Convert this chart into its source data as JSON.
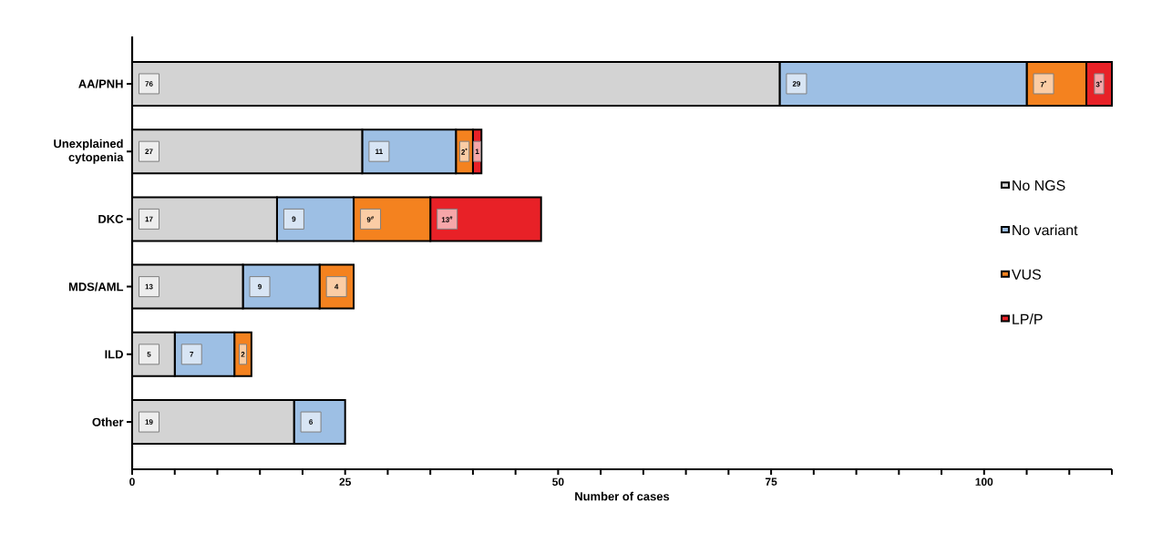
{
  "chart_data": {
    "type": "bar",
    "orientation": "horizontal",
    "stacked": true,
    "xlabel": "Number of cases",
    "categories": [
      "AA/PNH",
      "Unexplained cytopenia",
      "DKC",
      "MDS/AML",
      "ILD",
      "Other"
    ],
    "series": [
      {
        "name": "No NGS",
        "color": "#d3d3d3",
        "values": [
          76,
          27,
          17,
          13,
          5,
          19
        ],
        "value_labels": [
          "76",
          "27",
          "17",
          "13",
          "5",
          "19"
        ]
      },
      {
        "name": "No variant",
        "color": "#9dbfe4",
        "values": [
          29,
          11,
          9,
          9,
          7,
          6
        ],
        "value_labels": [
          "29",
          "11",
          "9",
          "9",
          "7",
          "6"
        ]
      },
      {
        "name": "VUS",
        "color": "#f4821f",
        "values": [
          7,
          2,
          9,
          4,
          2,
          null
        ],
        "value_labels": [
          "7$^{*}$",
          "2$^{*}$",
          "9$^{#}$",
          "4",
          "2",
          null
        ]
      },
      {
        "name": "LP/P",
        "color": "#e82127",
        "values": [
          3,
          1,
          13,
          null,
          null,
          null
        ],
        "value_labels": [
          "3$^{*}$",
          "1",
          "13$^{#}$",
          null,
          null,
          null
        ]
      }
    ],
    "xlim": [
      0,
      115
    ],
    "xticks": [
      0,
      {
        "value": 5,
        "label": null
      },
      {
        "value": 10,
        "label": null
      },
      {
        "value": 15,
        "label": null
      },
      {
        "value": 20,
        "label": null
      },
      25,
      {
        "value": 30,
        "label": null
      },
      {
        "value": 35,
        "label": null
      },
      {
        "value": 40,
        "label": null
      },
      {
        "value": 45,
        "label": null
      },
      50,
      {
        "value": 55,
        "label": null
      },
      {
        "value": 60,
        "label": null
      },
      {
        "value": 65,
        "label": null
      },
      {
        "value": 70,
        "label": null
      },
      75,
      {
        "value": 80,
        "label": null
      },
      {
        "value": 85,
        "label": null
      },
      {
        "value": 90,
        "label": null
      },
      {
        "value": 95,
        "label": null
      },
      100,
      {
        "value": 105,
        "label": null
      },
      {
        "value": 110,
        "label": null
      },
      {
        "value": 115,
        "label": null
      }
    ],
    "grid": false,
    "legend": "right"
  }
}
